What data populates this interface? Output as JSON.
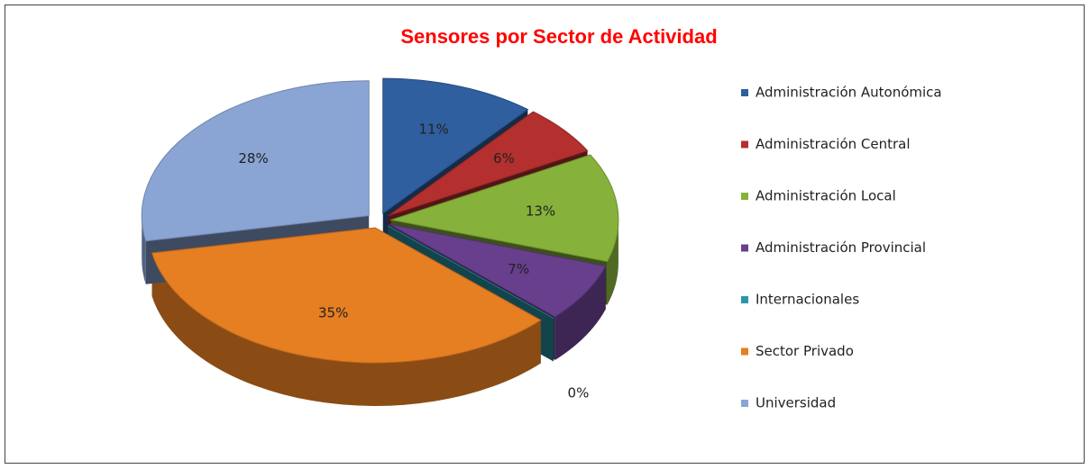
{
  "chart_data": {
    "type": "pie",
    "title": "Sensores por Sector de Actividad",
    "categories": [
      "Administración Autonómica",
      "Administración Central",
      "Administración Local",
      "Administración Provincial",
      "Internacionales",
      "Sector Privado",
      "Universidad"
    ],
    "values": [
      11,
      6,
      13,
      7,
      0,
      35,
      28
    ],
    "value_labels": [
      "11%",
      "6%",
      "13%",
      "7%",
      "0%",
      "35%",
      "28%"
    ],
    "colors": [
      "#2f5f9e",
      "#b3302e",
      "#86b13a",
      "#673f8c",
      "#2a97a9",
      "#e67e22",
      "#8aa5d4"
    ],
    "legend": "right"
  }
}
